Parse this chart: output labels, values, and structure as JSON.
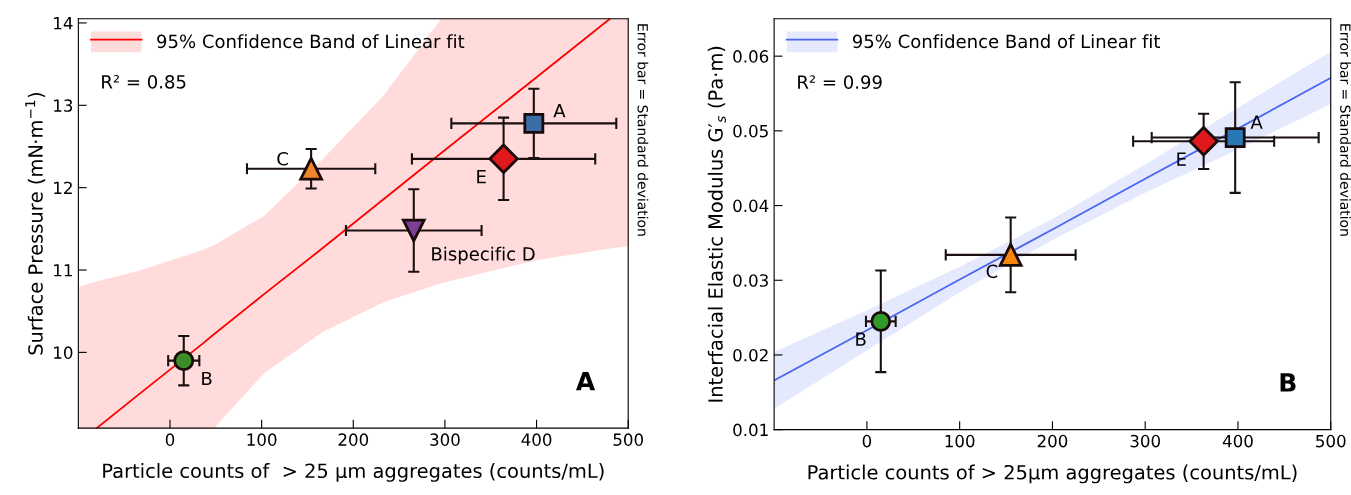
{
  "chart_data": [
    {
      "type": "scatter",
      "xlabel": "Particle counts of  > 25 µm aggregates (counts/mL)",
      "ylabel": "Surface Pressure (mN·m$^{−1}$)",
      "xlim": [
        -100,
        500
      ],
      "ylim": [
        9.08,
        14.05
      ],
      "xticks": [
        0,
        100,
        200,
        300,
        400,
        500
      ],
      "yticks": [
        10,
        11,
        12,
        13,
        14
      ],
      "grid": false,
      "legend": "top left",
      "annotations": [
        "R² = 0.85",
        "Error bar = Standard deviation",
        "A"
      ],
      "series": [
        {
          "type": "line",
          "name": "95% Confidence Band of Linear fit",
          "color": "#ff0000",
          "marker": "none",
          "line_style": "solid",
          "x": [
            -99,
            -80,
            -34,
            35,
            48,
            103,
            167,
            233,
            296,
            400,
            480,
            500
          ],
          "values": [
            null,
            9.08,
            9.49,
            10.1,
            10.22,
            10.71,
            11.27,
            11.86,
            12.42,
            13.34,
            14.05,
            null
          ],
          "lower": [
            9.08,
            9.08,
            9.08,
            9.08,
            9.08,
            9.75,
            10.25,
            10.61,
            10.84,
            11.12,
            11.26,
            11.29
          ],
          "upper": [
            10.8,
            10.86,
            10.99,
            11.24,
            11.3,
            11.66,
            12.35,
            13.12,
            14.05,
            14.05,
            14.05,
            14.05
          ]
        },
        {
          "name": "A",
          "color": "#3b6ea8",
          "marker": "square",
          "x": [
            397
          ],
          "values": [
            12.78
          ],
          "errors": [
            0.42
          ],
          "xerrors": [
            90
          ]
        },
        {
          "name": "B",
          "color": "#3c8c28",
          "marker": "circle",
          "x": [
            15
          ],
          "values": [
            9.9
          ],
          "errors": [
            0.3
          ],
          "xerrors": [
            17
          ]
        },
        {
          "name": "C",
          "color": "#f0862a",
          "marker": "triangle",
          "x": [
            154
          ],
          "values": [
            12.23
          ],
          "errors": [
            0.24
          ],
          "xerrors": [
            70
          ]
        },
        {
          "name": "Bispecific D",
          "color": "#7b3f96",
          "marker": "triangle_down",
          "x": [
            266
          ],
          "values": [
            11.48
          ],
          "errors": [
            0.5
          ],
          "xerrors": [
            74
          ]
        },
        {
          "name": "E",
          "color": "#e0191c",
          "marker": "diamond",
          "x": [
            364
          ],
          "values": [
            12.35
          ],
          "errors": [
            0.5
          ],
          "xerrors": [
            100
          ]
        }
      ]
    },
    {
      "type": "scatter",
      "xlabel": "Particle counts of > 25μm aggregates (counts/mL)",
      "ylabel": "Interfacial Elastic Modulus G′$_{s}$ (Pa·m)",
      "xlim": [
        -100,
        500
      ],
      "ylim": [
        0.01,
        0.065
      ],
      "xticks": [
        0,
        100,
        200,
        300,
        400,
        500
      ],
      "yticks": [
        0.01,
        0.02,
        0.03,
        0.04,
        0.05,
        0.06
      ],
      "grid": false,
      "legend": "top left",
      "annotations": [
        "R² = 0.99",
        "Error bar = Standard deviation",
        "B"
      ],
      "series": [
        {
          "type": "line",
          "name": "95% Confidence Band of Linear fit",
          "color": "#4a66f0",
          "marker": "none",
          "line_style": "solid",
          "x": [
            -100,
            0,
            100,
            200,
            300,
            400,
            500
          ],
          "values": [
            0.0166,
            0.0233,
            0.0301,
            0.0368,
            0.0436,
            0.0503,
            0.0571
          ],
          "lower": [
            0.0128,
            0.0206,
            0.0284,
            0.0354,
            0.0417,
            0.0475,
            0.0536
          ],
          "upper": [
            0.0204,
            0.026,
            0.0318,
            0.0382,
            0.0455,
            0.0531,
            0.0606
          ]
        },
        {
          "name": "A",
          "color": "#2878b5",
          "marker": "square",
          "x": [
            397
          ],
          "values": [
            0.0491
          ],
          "errors": [
            0.0074
          ],
          "xerrors": [
            90
          ]
        },
        {
          "name": "B",
          "color": "#2f9a2a",
          "marker": "circle",
          "x": [
            15
          ],
          "values": [
            0.0245
          ],
          "errors": [
            0.0068
          ],
          "xerrors": [
            16
          ]
        },
        {
          "name": "C",
          "color": "#f7860f",
          "marker": "triangle",
          "x": [
            155
          ],
          "values": [
            0.0334
          ],
          "errors": [
            0.005
          ],
          "xerrors": [
            70
          ]
        },
        {
          "name": "E",
          "color": "#e0191c",
          "marker": "diamond",
          "x": [
            363
          ],
          "values": [
            0.0486
          ],
          "errors": [
            0.0037
          ],
          "xerrors": [
            76
          ]
        }
      ]
    }
  ]
}
